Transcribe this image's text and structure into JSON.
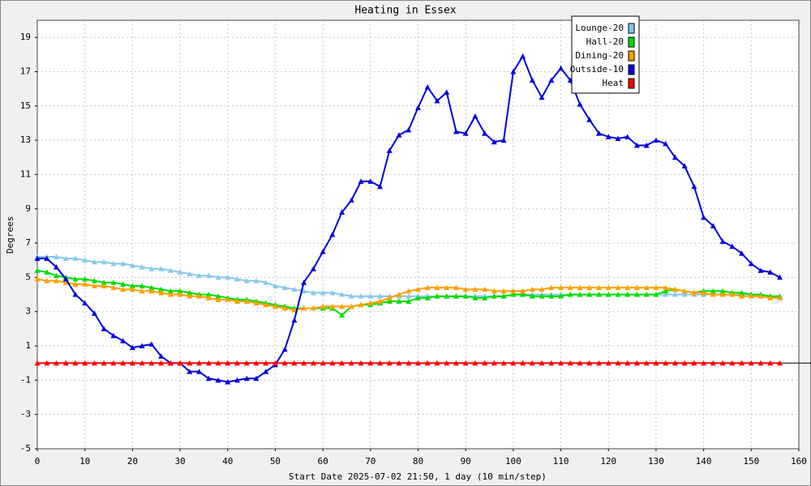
{
  "chart_data": {
    "type": "line",
    "title": "Heating in Essex",
    "x_label": "Start Date 2025-07-02 21:50, 1 day (10 min/step)",
    "y_label": "Degrees",
    "xlim": [
      0,
      160
    ],
    "xticks": [
      0,
      10,
      20,
      30,
      40,
      50,
      60,
      70,
      80,
      90,
      100,
      110,
      120,
      130,
      140,
      150,
      160
    ],
    "ylim": [
      -5,
      20
    ],
    "yticks": [
      -5,
      -3,
      -1,
      1,
      3,
      5,
      7,
      9,
      11,
      13,
      15,
      17,
      19
    ],
    "grid": true,
    "legend": "upper right",
    "x": [
      0,
      2,
      4,
      6,
      8,
      10,
      12,
      14,
      16,
      18,
      20,
      22,
      24,
      26,
      28,
      30,
      32,
      34,
      36,
      38,
      40,
      42,
      44,
      46,
      48,
      50,
      52,
      54,
      56,
      58,
      60,
      62,
      64,
      66,
      68,
      70,
      72,
      74,
      76,
      78,
      80,
      82,
      84,
      86,
      88,
      90,
      92,
      94,
      96,
      98,
      100,
      102,
      104,
      106,
      108,
      110,
      112,
      114,
      116,
      118,
      120,
      122,
      124,
      126,
      128,
      130,
      132,
      134,
      136,
      138,
      140,
      142,
      144,
      146,
      148,
      150,
      152,
      154,
      156
    ],
    "series": [
      {
        "name": "Lounge-20",
        "color": "#87c8ee",
        "values": [
          6.2,
          6.2,
          6.2,
          6.1,
          6.1,
          6.0,
          5.9,
          5.9,
          5.8,
          5.8,
          5.7,
          5.6,
          5.5,
          5.5,
          5.4,
          5.3,
          5.2,
          5.1,
          5.1,
          5.0,
          5.0,
          4.9,
          4.8,
          4.8,
          4.7,
          4.5,
          4.4,
          4.3,
          4.2,
          4.1,
          4.1,
          4.1,
          4.0,
          3.9,
          3.9,
          3.9,
          3.9,
          3.9,
          3.9,
          3.9,
          3.9,
          3.9,
          3.9,
          3.9,
          3.9,
          3.9,
          3.9,
          3.9,
          3.9,
          3.9,
          4.0,
          4.0,
          4.0,
          4.0,
          4.0,
          4.0,
          4.0,
          4.0,
          4.0,
          4.0,
          4.0,
          4.0,
          4.0,
          4.0,
          4.0,
          4.0,
          4.0,
          4.0,
          4.0,
          4.0,
          4.0,
          4.0,
          4.0,
          4.0,
          4.0,
          4.0,
          3.9,
          3.9,
          3.9
        ]
      },
      {
        "name": "Hall-20",
        "color": "#00dd00",
        "values": [
          5.4,
          5.3,
          5.1,
          5.0,
          4.9,
          4.9,
          4.8,
          4.7,
          4.7,
          4.6,
          4.5,
          4.5,
          4.4,
          4.3,
          4.2,
          4.2,
          4.1,
          4.0,
          4.0,
          3.9,
          3.8,
          3.7,
          3.7,
          3.6,
          3.5,
          3.4,
          3.3,
          3.2,
          3.2,
          3.2,
          3.2,
          3.2,
          2.8,
          3.3,
          3.4,
          3.4,
          3.5,
          3.6,
          3.6,
          3.6,
          3.8,
          3.8,
          3.9,
          3.9,
          3.9,
          3.9,
          3.8,
          3.8,
          3.9,
          3.9,
          4.0,
          4.0,
          3.9,
          3.9,
          3.9,
          3.9,
          4.0,
          4.0,
          4.0,
          4.0,
          4.0,
          4.0,
          4.0,
          4.0,
          4.0,
          4.0,
          4.2,
          4.3,
          4.2,
          4.1,
          4.2,
          4.2,
          4.2,
          4.1,
          4.1,
          4.0,
          4.0,
          3.9,
          3.9
        ]
      },
      {
        "name": "Dining-20",
        "color": "#ffa000",
        "values": [
          4.9,
          4.8,
          4.8,
          4.7,
          4.6,
          4.6,
          4.5,
          4.5,
          4.4,
          4.3,
          4.3,
          4.2,
          4.2,
          4.1,
          4.0,
          4.0,
          3.9,
          3.9,
          3.8,
          3.7,
          3.7,
          3.6,
          3.6,
          3.5,
          3.4,
          3.3,
          3.2,
          3.1,
          3.2,
          3.2,
          3.3,
          3.3,
          3.3,
          3.3,
          3.4,
          3.5,
          3.6,
          3.8,
          4.0,
          4.2,
          4.3,
          4.4,
          4.4,
          4.4,
          4.4,
          4.3,
          4.3,
          4.3,
          4.2,
          4.2,
          4.2,
          4.2,
          4.3,
          4.3,
          4.4,
          4.4,
          4.4,
          4.4,
          4.4,
          4.4,
          4.4,
          4.4,
          4.4,
          4.4,
          4.4,
          4.4,
          4.4,
          4.3,
          4.2,
          4.1,
          4.1,
          4.0,
          4.0,
          4.0,
          3.9,
          3.9,
          3.9,
          3.8,
          3.8
        ]
      },
      {
        "name": "Outside-10",
        "color": "#0000dd",
        "values": [
          6.1,
          6.1,
          5.6,
          4.9,
          4.0,
          3.5,
          2.9,
          2.0,
          1.6,
          1.3,
          0.9,
          1.0,
          1.1,
          0.4,
          0.0,
          0.0,
          -0.5,
          -0.5,
          -0.9,
          -1.0,
          -1.1,
          -1.0,
          -0.9,
          -0.9,
          -0.5,
          -0.1,
          0.8,
          2.5,
          4.7,
          5.5,
          6.5,
          7.5,
          8.8,
          9.5,
          10.6,
          10.6,
          10.3,
          12.4,
          13.3,
          13.6,
          14.9,
          16.1,
          15.3,
          15.8,
          13.5,
          13.4,
          14.4,
          13.4,
          12.9,
          13.0,
          17.0,
          17.9,
          16.5,
          15.5,
          16.5,
          17.2,
          16.5,
          15.1,
          14.2,
          13.4,
          13.2,
          13.1,
          13.2,
          12.7,
          12.7,
          13.0,
          12.8,
          12.0,
          11.5,
          10.3,
          8.5,
          8.0,
          7.1,
          6.8,
          6.4,
          5.8,
          5.4,
          5.3,
          5.0
        ]
      },
      {
        "name": "Heat",
        "color": "#ff0000",
        "values": [
          0,
          0,
          0,
          0,
          0,
          0,
          0,
          0,
          0,
          0,
          0,
          0,
          0,
          0,
          0,
          0,
          0,
          0,
          0,
          0,
          0,
          0,
          0,
          0,
          0,
          0,
          0,
          0,
          0,
          0,
          0,
          0,
          0,
          0,
          0,
          0,
          0,
          0,
          0,
          0,
          0,
          0,
          0,
          0,
          0,
          0,
          0,
          0,
          0,
          0,
          0,
          0,
          0,
          0,
          0,
          0,
          0,
          0,
          0,
          0,
          0,
          0,
          0,
          0,
          0,
          0,
          0,
          0,
          0,
          0,
          0,
          0,
          0,
          0,
          0,
          0,
          0,
          0,
          0
        ]
      }
    ]
  }
}
